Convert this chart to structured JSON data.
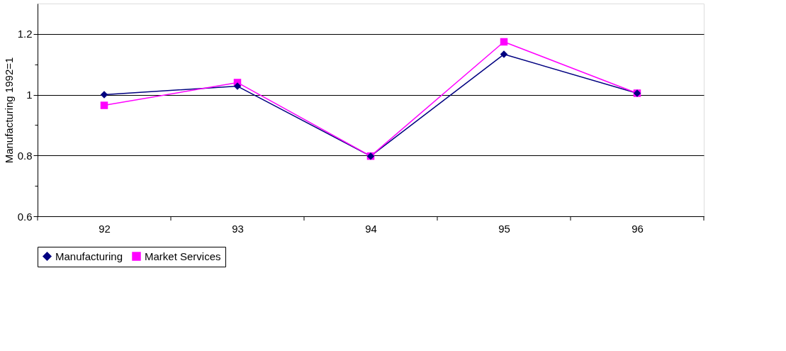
{
  "chart_data": {
    "type": "line",
    "ylabel": "Manufacturing 1992=1",
    "categories": [
      "92",
      "93",
      "94",
      "95",
      "96"
    ],
    "series": [
      {
        "name": "Manufacturing",
        "color": "#000080",
        "marker": "diamond",
        "values": [
          1.0,
          1.028,
          0.798,
          1.133,
          1.005
        ]
      },
      {
        "name": "Market Services",
        "color": "#ff00ff",
        "marker": "square",
        "values": [
          0.965,
          1.04,
          0.798,
          1.174,
          1.005
        ]
      }
    ],
    "ylim": [
      0.6,
      1.3
    ],
    "yticks": [
      0.6,
      {
        "value": 0.7,
        "label": null
      },
      0.8,
      {
        "value": 0.9,
        "label": null
      },
      1,
      {
        "value": 1.1,
        "label": null
      },
      1.2
    ],
    "grid": "y",
    "legend": "bottom",
    "line_style": "solid"
  }
}
